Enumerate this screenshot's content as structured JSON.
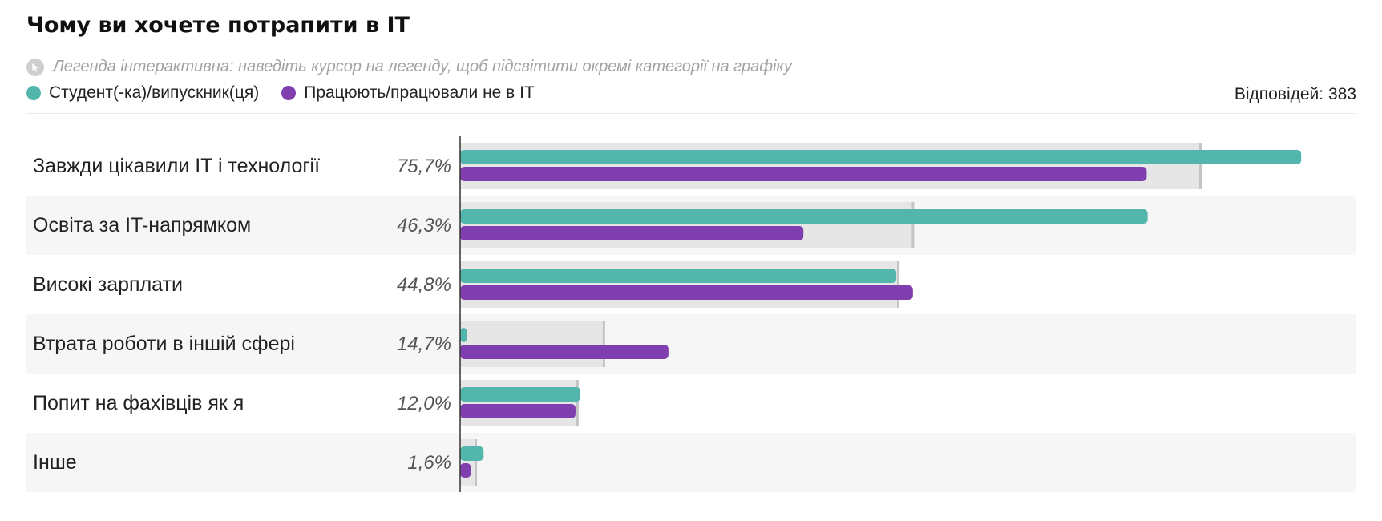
{
  "title": "Чому ви хочете потрапити в IT",
  "hint": {
    "icon": "cursor-icon",
    "text": "Легенда інтерактивна: наведіть курсор на легенду, щоб підсвітити окремі категорії на графіку"
  },
  "responses_label": "Відповідей: 383",
  "colors": {
    "students": "#52b6ad",
    "others": "#7f3fae",
    "total": "#e6e6e6",
    "total_marker": "#c4c4c4",
    "row_alt": "#f6f6f6"
  },
  "chart_data": {
    "type": "bar",
    "orientation": "horizontal",
    "grid": false,
    "legend_placement": "top-left",
    "xlim": [
      0,
      100
    ],
    "categories": [
      "Завжди цікавили IT і технології",
      "Освіта за IT-напрямком",
      "Високі зарплати",
      "Втрата роботи в іншій сфері",
      "Попит на фахівців як я",
      "Інше"
    ],
    "total_labels": [
      "75,7%",
      "46,3%",
      "44,8%",
      "14,7%",
      "12,0%",
      "1,6%"
    ],
    "total_values": [
      75.7,
      46.3,
      44.8,
      14.7,
      12.0,
      1.6
    ],
    "series": [
      {
        "name": "Студент(-ка)/випускник(ця)",
        "key": "students",
        "values": [
          86,
          70.3,
          44.6,
          0.7,
          12.3,
          2.4
        ]
      },
      {
        "name": "Працюють/працювали не в IT",
        "key": "others",
        "values": [
          70.2,
          35.1,
          46.3,
          21.3,
          11.8,
          1.1
        ]
      }
    ]
  }
}
